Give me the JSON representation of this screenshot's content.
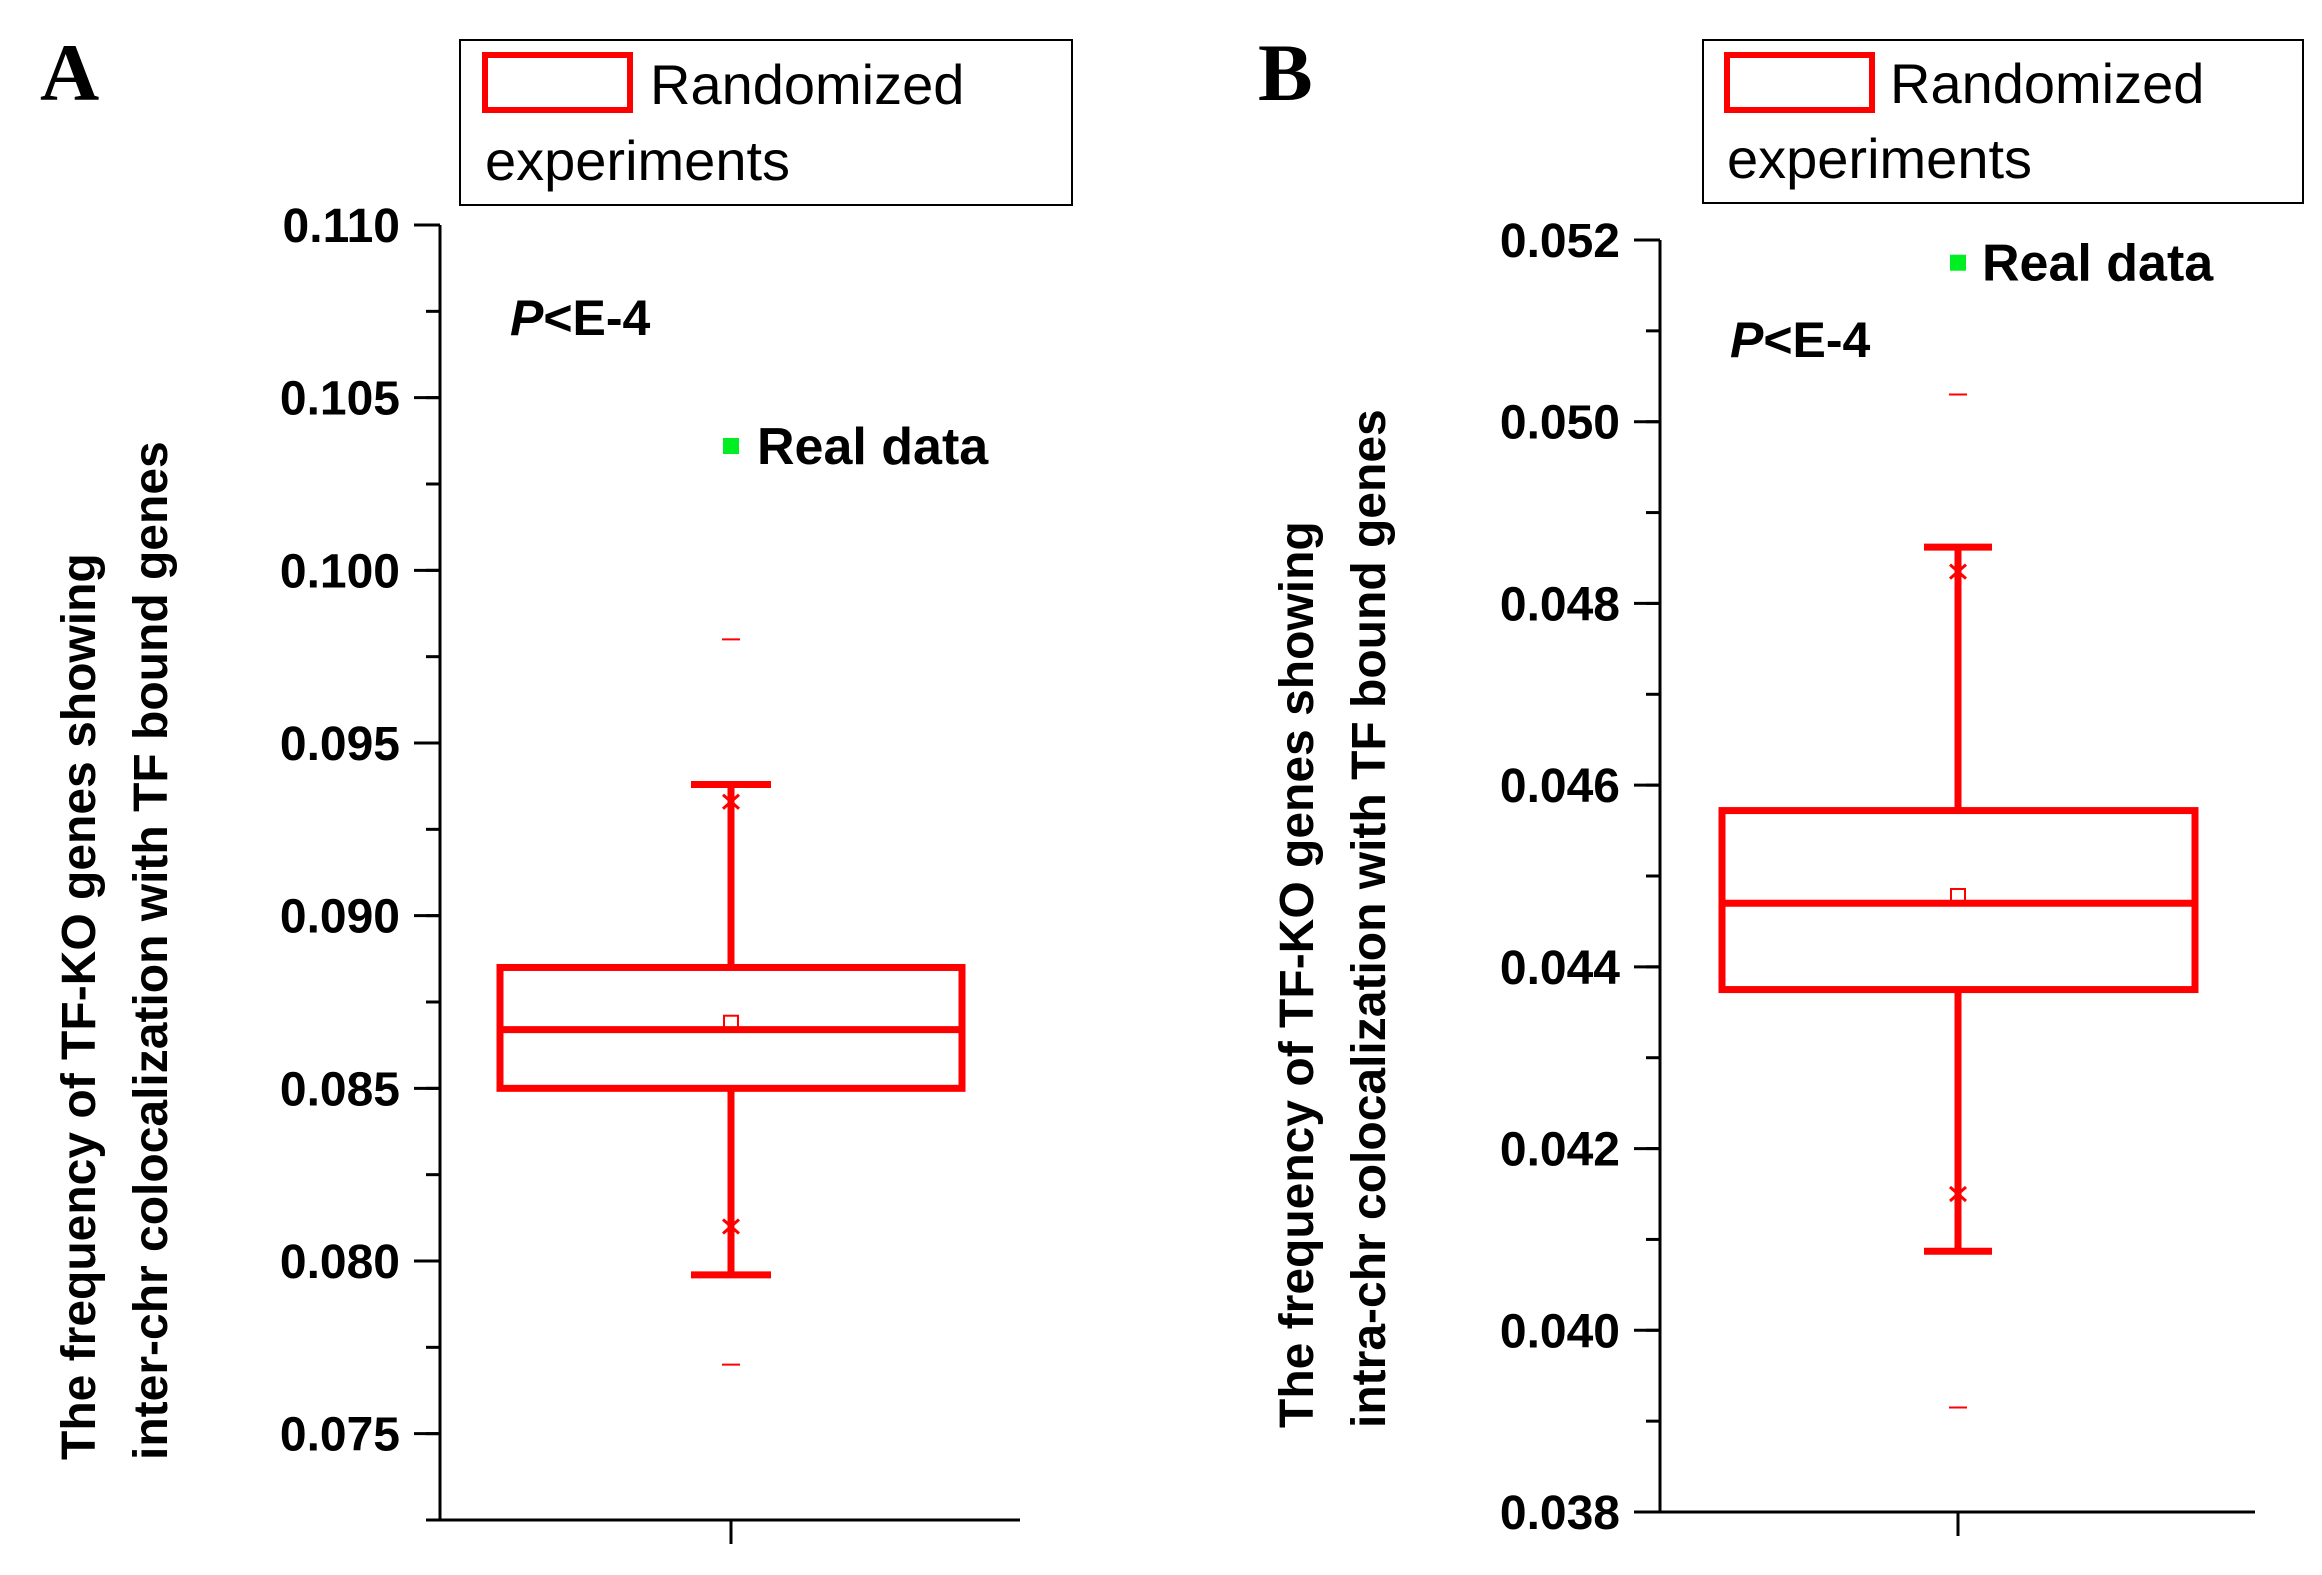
{
  "chart_data": [
    {
      "type": "box",
      "panel_label": "A",
      "ylabel_lines": [
        "The frequency of TF-KO genes showing",
        "inter-chr colocalization with TF bound genes"
      ],
      "ylim": [
        0.0725,
        0.11
      ],
      "major_ticks": [
        0.075,
        0.08,
        0.085,
        0.09,
        0.095,
        0.1,
        0.105,
        0.11
      ],
      "tick_labels": [
        "0.075",
        "0.080",
        "0.085",
        "0.090",
        "0.095",
        "0.100",
        "0.105",
        "0.110"
      ],
      "minor_step": 0.0025,
      "legend": {
        "line1": "Randomized",
        "line2": "experiments",
        "color": "#ff0000"
      },
      "box": {
        "q1": 0.085,
        "median": 0.0867,
        "q3": 0.0885,
        "mean": 0.0869,
        "whisker_low": 0.0796,
        "whisker_high": 0.0938,
        "p1": 0.081,
        "p99": 0.0933,
        "min": 0.077,
        "max": 0.098
      },
      "real_data": {
        "value": 0.1036,
        "label": "Real data",
        "color": "#00ee22"
      },
      "p_text": {
        "italic": "P",
        "rest": "<E-4"
      },
      "box_color": "#ff0000"
    },
    {
      "type": "box",
      "panel_label": "B",
      "ylabel_lines": [
        "The frequency of TF-KO genes showing",
        "intra-chr colocalization with TF bound genes"
      ],
      "ylim": [
        0.038,
        0.052
      ],
      "major_ticks": [
        0.038,
        0.04,
        0.042,
        0.044,
        0.046,
        0.048,
        0.05,
        0.052
      ],
      "tick_labels": [
        "0.038",
        "0.040",
        "0.042",
        "0.044",
        "0.046",
        "0.048",
        "0.050",
        "0.052"
      ],
      "minor_step": 0.001,
      "legend": {
        "line1": "Randomized",
        "line2": "experiments",
        "color": "#ff0000"
      },
      "box": {
        "q1": 0.04375,
        "median": 0.0447,
        "q3": 0.04572,
        "mean": 0.04478,
        "whisker_low": 0.04087,
        "whisker_high": 0.04862,
        "p1": 0.0415,
        "p99": 0.04835,
        "min": 0.03915,
        "max": 0.0503
      },
      "real_data": {
        "value": 0.05175,
        "label": "Real data",
        "color": "#00ee22"
      },
      "p_text": {
        "italic": "P",
        "rest": "<E-4"
      },
      "box_color": "#ff0000"
    }
  ]
}
